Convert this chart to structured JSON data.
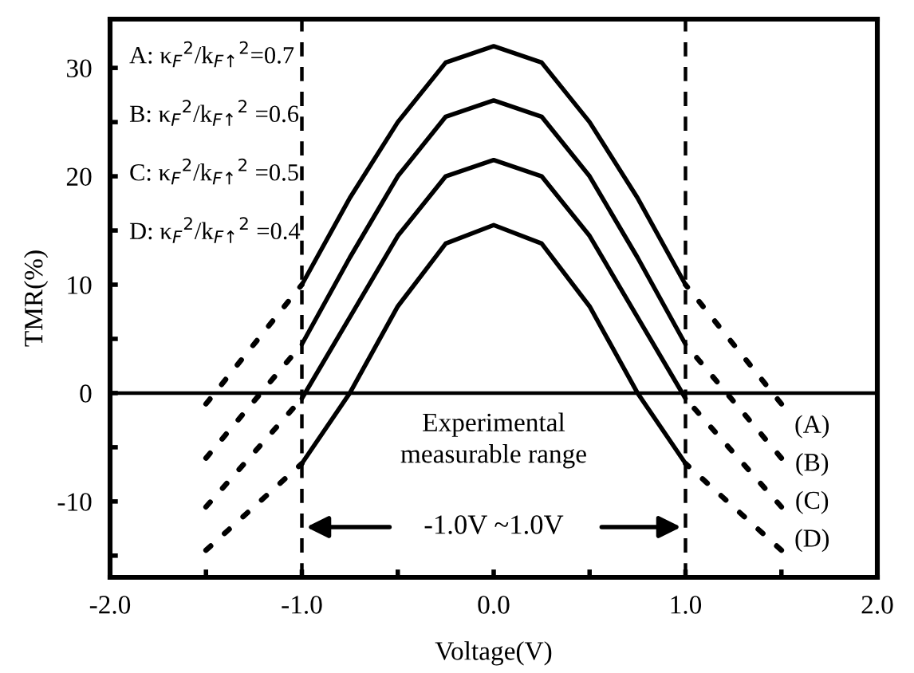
{
  "chart_data": {
    "type": "line",
    "xlabel": "Voltage(V)",
    "ylabel": "TMR(%)",
    "xlim": [
      -2,
      2
    ],
    "ylim": [
      -17,
      34.5
    ],
    "xticks": [
      {
        "value": -2,
        "label": "-2.0"
      },
      {
        "value": -1.5,
        "label": null
      },
      {
        "value": -1,
        "label": "-1.0"
      },
      {
        "value": -0.5,
        "label": null
      },
      {
        "value": 0,
        "label": "0.0"
      },
      {
        "value": 0.5,
        "label": null
      },
      {
        "value": 1,
        "label": "1.0"
      },
      {
        "value": 1.5,
        "label": null
      },
      {
        "value": 2,
        "label": "2.0"
      }
    ],
    "yticks": [
      {
        "value": -15,
        "label": null
      },
      -10,
      {
        "value": -5,
        "label": null
      },
      0,
      {
        "value": 5,
        "label": null
      },
      10,
      {
        "value": 15,
        "label": null
      },
      20,
      {
        "value": 25,
        "label": null
      },
      30
    ],
    "grid": false,
    "marker": "none",
    "series": [
      {
        "color": "#000000",
        "line_style": "solid",
        "x": [
          -1,
          -0.75,
          -0.5,
          -0.25,
          0,
          0.25,
          0.5,
          0.75,
          1
        ],
        "values": [
          10,
          18,
          25,
          30.5,
          32,
          30.5,
          25,
          18,
          10
        ]
      },
      {
        "color": "#000000",
        "line_style": "solid",
        "x": [
          -1,
          -0.75,
          -0.5,
          -0.25,
          0,
          0.25,
          0.5,
          0.75,
          1
        ],
        "values": [
          4.5,
          12.5,
          20,
          25.5,
          27,
          25.5,
          20,
          12.5,
          4.5
        ]
      },
      {
        "color": "#000000",
        "line_style": "solid",
        "x": [
          -1,
          -0.75,
          -0.5,
          -0.25,
          0,
          0.25,
          0.5,
          0.75,
          1
        ],
        "values": [
          -0.5,
          7,
          14.5,
          20,
          21.5,
          20,
          14.5,
          7,
          -0.5
        ]
      },
      {
        "color": "#000000",
        "line_style": "solid",
        "x": [
          -1,
          -0.75,
          -0.5,
          -0.25,
          0,
          0.25,
          0.5,
          0.75,
          1
        ],
        "values": [
          -6.5,
          0,
          8,
          13.8,
          15.5,
          13.8,
          8,
          0,
          -6.5
        ]
      },
      {
        "color": "#000000",
        "line_style": "dotted",
        "x": [
          -1.5,
          -1,
          null,
          1.5,
          1
        ],
        "values": [
          -1,
          10,
          null,
          -1,
          10
        ]
      },
      {
        "color": "#000000",
        "line_style": "dotted",
        "x": [
          -1.5,
          -1,
          null,
          1.5,
          1
        ],
        "values": [
          -6,
          4.5,
          null,
          -6,
          4.5
        ]
      },
      {
        "color": "#000000",
        "line_style": "dotted",
        "x": [
          -1.5,
          -1,
          null,
          1.5,
          1
        ],
        "values": [
          -10.5,
          -0.5,
          null,
          -10.5,
          -0.5
        ]
      },
      {
        "color": "#000000",
        "line_style": "dotted",
        "x": [
          -1.5,
          -1,
          null,
          1.5,
          1
        ],
        "values": [
          -14.5,
          -6.5,
          null,
          -14.5,
          -6.5
        ]
      }
    ],
    "ref_lines": [
      {
        "axis": "x",
        "value": -1,
        "color": "#000000",
        "line_style": "dashed"
      },
      {
        "axis": "x",
        "value": 1,
        "color": "#000000",
        "line_style": "dashed"
      },
      {
        "axis": "y",
        "value": 0,
        "color": "#000000",
        "line_style": "solid"
      }
    ],
    "annotations": [
      "A: κ$_{F}$$^{2}$/k$_{F↑}$$^{2}$=0.7",
      "B: κ$_{F}$$^{2}$/k$_{F↑}$$^{2}$ =0.6",
      "C: κ$_{F}$$^{2}$/k$_{F↑}$$^{2}$ =0.5",
      "D: κ$_{F}$$^{2}$/k$_{F↑}$$^{2}$ =0.4",
      "Experimental\nmeasurable range",
      "-1.0V ~1.0V",
      "(A)",
      "(B)",
      "(C)",
      "(D)"
    ]
  }
}
